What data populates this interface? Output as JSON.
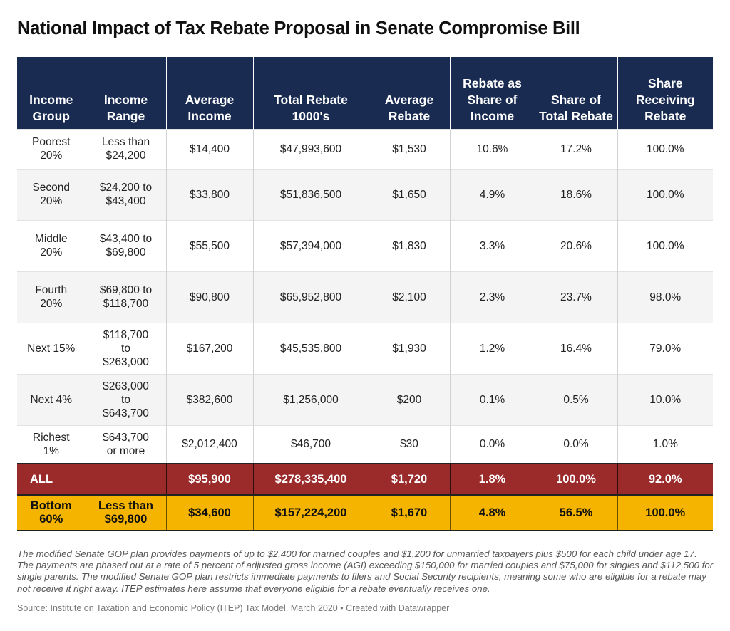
{
  "title": "National Impact of Tax Rebate Proposal in Senate Compromise Bill",
  "chart_data": {
    "type": "table",
    "title": "National Impact of Tax Rebate Proposal in Senate Compromise Bill",
    "columns": [
      "Income Group",
      "Income Range",
      "Average Income",
      "Total Rebate 1000's",
      "Average Rebate",
      "Rebate as Share of Income",
      "Share of Total Rebate",
      "Share Receiving Rebate"
    ],
    "rows": [
      [
        "Poorest 20%",
        "Less than $24,200",
        "$14,400",
        "$47,993,600",
        "$1,530",
        "10.6%",
        "17.2%",
        "100.0%"
      ],
      [
        "Second 20%",
        "$24,200 to $43,400",
        "$33,800",
        "$51,836,500",
        "$1,650",
        "4.9%",
        "18.6%",
        "100.0%"
      ],
      [
        "Middle 20%",
        "$43,400 to $69,800",
        "$55,500",
        "$57,394,000",
        "$1,830",
        "3.3%",
        "20.6%",
        "100.0%"
      ],
      [
        "Fourth 20%",
        "$69,800 to $118,700",
        "$90,800",
        "$65,952,800",
        "$2,100",
        "2.3%",
        "23.7%",
        "98.0%"
      ],
      [
        "Next 15%",
        "$118,700 to $263,000",
        "$167,200",
        "$45,535,800",
        "$1,930",
        "1.2%",
        "16.4%",
        "79.0%"
      ],
      [
        "Next 4%",
        "$263,000 to $643,700",
        "$382,600",
        "$1,256,000",
        "$200",
        "0.1%",
        "0.5%",
        "10.0%"
      ],
      [
        "Richest 1%",
        "$643,700 or more",
        "$2,012,400",
        "$46,700",
        "$30",
        "0.0%",
        "0.0%",
        "1.0%"
      ]
    ],
    "summary_rows": [
      [
        "ALL",
        "",
        "$95,900",
        "$278,335,400",
        "$1,720",
        "1.8%",
        "100.0%",
        "92.0%"
      ],
      [
        "Bottom 60%",
        "Less than $69,800",
        "$34,600",
        "$157,224,200",
        "$1,670",
        "4.8%",
        "56.5%",
        "100.0%"
      ]
    ]
  },
  "colors": {
    "header_bg": "#1a2b52",
    "all_row_bg": "#9b2a2a",
    "bottom_row_bg": "#f5b400"
  },
  "footnote": "The modified Senate GOP plan provides payments of up to $2,400 for married couples and $1,200 for unmarried taxpayers plus $500 for each child under age 17. The payments are phased out at a rate of 5 percent of adjusted gross income (AGI) exceeding $150,000 for married couples and $75,000 for singles and $112,500 for single parents. The modified Senate GOP plan restricts immediate payments to filers and Social Security recipients, meaning some who are eligible for a rebate may not receive it right away. ITEP estimates here assume that everyone eligible for a rebate eventually receives one.",
  "source": "Source: Institute on Taxation and Economic Policy (ITEP) Tax Model, March 2020 • Created with Datawrapper"
}
